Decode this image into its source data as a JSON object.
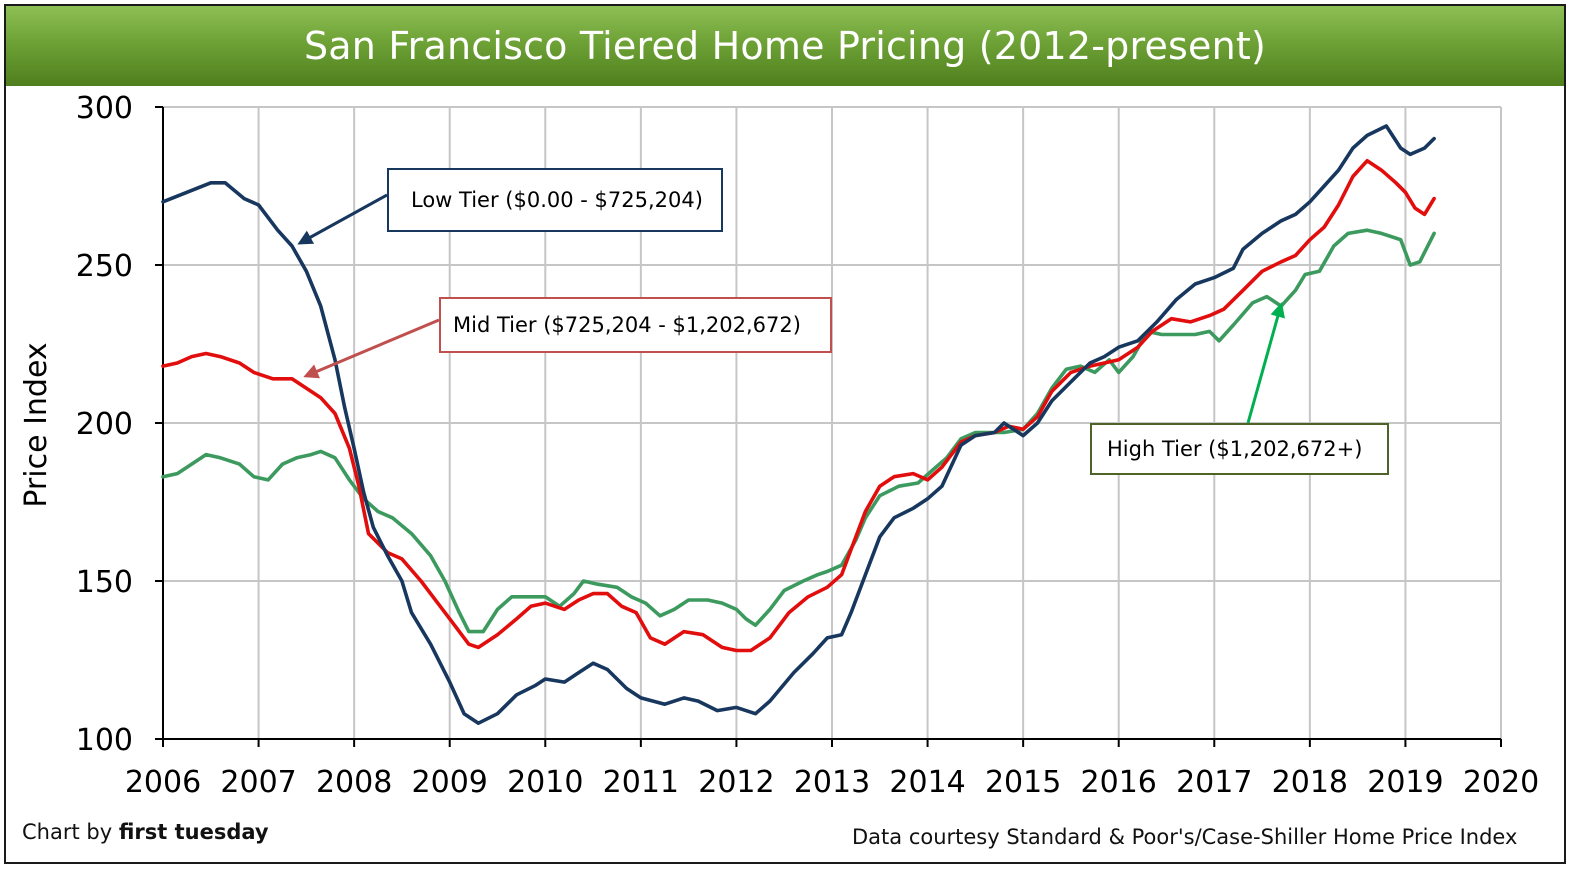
{
  "chart_data": {
    "type": "line",
    "title": "San Francisco Tiered Home Pricing (2012-present)",
    "ylabel": "Price Index",
    "xlabel": "",
    "xlim": [
      2006,
      2020
    ],
    "ylim": [
      100,
      300
    ],
    "x_ticks": [
      "2006",
      "2007",
      "2008",
      "2009",
      "2010",
      "2011",
      "2012",
      "2013",
      "2014",
      "2015",
      "2016",
      "2017",
      "2018",
      "2019",
      "2020"
    ],
    "y_ticks": [
      "100",
      "150",
      "200",
      "250",
      "300"
    ],
    "grid": true,
    "series": [
      {
        "name": "Low Tier ($0.00 - $725,204)",
        "color": "#17375e",
        "points": [
          [
            2006.0,
            270
          ],
          [
            2006.25,
            273
          ],
          [
            2006.5,
            276
          ],
          [
            2006.65,
            276
          ],
          [
            2006.85,
            271
          ],
          [
            2007.0,
            269
          ],
          [
            2007.2,
            261
          ],
          [
            2007.35,
            256
          ],
          [
            2007.5,
            248
          ],
          [
            2007.65,
            237
          ],
          [
            2007.8,
            220
          ],
          [
            2007.9,
            205
          ],
          [
            2008.0,
            192
          ],
          [
            2008.1,
            178
          ],
          [
            2008.2,
            167
          ],
          [
            2008.35,
            158
          ],
          [
            2008.5,
            150
          ],
          [
            2008.6,
            140
          ],
          [
            2008.8,
            130
          ],
          [
            2009.0,
            118
          ],
          [
            2009.15,
            108
          ],
          [
            2009.3,
            105
          ],
          [
            2009.5,
            108
          ],
          [
            2009.7,
            114
          ],
          [
            2009.9,
            117
          ],
          [
            2010.0,
            119
          ],
          [
            2010.2,
            118
          ],
          [
            2010.35,
            121
          ],
          [
            2010.5,
            124
          ],
          [
            2010.65,
            122
          ],
          [
            2010.85,
            116
          ],
          [
            2011.0,
            113
          ],
          [
            2011.25,
            111
          ],
          [
            2011.45,
            113
          ],
          [
            2011.6,
            112
          ],
          [
            2011.8,
            109
          ],
          [
            2012.0,
            110
          ],
          [
            2012.2,
            108
          ],
          [
            2012.35,
            112
          ],
          [
            2012.6,
            121
          ],
          [
            2012.8,
            127
          ],
          [
            2012.95,
            132
          ],
          [
            2013.1,
            133
          ],
          [
            2013.2,
            140
          ],
          [
            2013.35,
            152
          ],
          [
            2013.5,
            164
          ],
          [
            2013.65,
            170
          ],
          [
            2013.85,
            173
          ],
          [
            2014.0,
            176
          ],
          [
            2014.15,
            180
          ],
          [
            2014.35,
            193
          ],
          [
            2014.5,
            196
          ],
          [
            2014.7,
            197
          ],
          [
            2014.8,
            200
          ],
          [
            2014.95,
            197
          ],
          [
            2015.0,
            196
          ],
          [
            2015.15,
            200
          ],
          [
            2015.3,
            207
          ],
          [
            2015.5,
            213
          ],
          [
            2015.7,
            219
          ],
          [
            2015.85,
            221
          ],
          [
            2016.0,
            224
          ],
          [
            2016.2,
            226
          ],
          [
            2016.4,
            232
          ],
          [
            2016.6,
            239
          ],
          [
            2016.8,
            244
          ],
          [
            2017.0,
            246
          ],
          [
            2017.2,
            249
          ],
          [
            2017.3,
            255
          ],
          [
            2017.5,
            260
          ],
          [
            2017.7,
            264
          ],
          [
            2017.85,
            266
          ],
          [
            2018.0,
            270
          ],
          [
            2018.15,
            275
          ],
          [
            2018.3,
            280
          ],
          [
            2018.45,
            287
          ],
          [
            2018.6,
            291
          ],
          [
            2018.8,
            294
          ],
          [
            2018.95,
            287
          ],
          [
            2019.05,
            285
          ],
          [
            2019.2,
            287
          ],
          [
            2019.3,
            290
          ]
        ]
      },
      {
        "name": "Mid Tier ($725,204 - $1,202,672)",
        "color": "#e20d0d",
        "points": [
          [
            2006.0,
            218
          ],
          [
            2006.15,
            219
          ],
          [
            2006.3,
            221
          ],
          [
            2006.45,
            222
          ],
          [
            2006.6,
            221
          ],
          [
            2006.8,
            219
          ],
          [
            2006.95,
            216
          ],
          [
            2007.15,
            214
          ],
          [
            2007.35,
            214
          ],
          [
            2007.5,
            211
          ],
          [
            2007.65,
            208
          ],
          [
            2007.8,
            203
          ],
          [
            2007.95,
            192
          ],
          [
            2008.05,
            180
          ],
          [
            2008.15,
            165
          ],
          [
            2008.35,
            159
          ],
          [
            2008.5,
            157
          ],
          [
            2008.7,
            150
          ],
          [
            2008.9,
            142
          ],
          [
            2009.05,
            136
          ],
          [
            2009.2,
            130
          ],
          [
            2009.3,
            129
          ],
          [
            2009.5,
            133
          ],
          [
            2009.7,
            138
          ],
          [
            2009.85,
            142
          ],
          [
            2010.0,
            143
          ],
          [
            2010.2,
            141
          ],
          [
            2010.35,
            144
          ],
          [
            2010.5,
            146
          ],
          [
            2010.65,
            146
          ],
          [
            2010.8,
            142
          ],
          [
            2010.95,
            140
          ],
          [
            2011.1,
            132
          ],
          [
            2011.25,
            130
          ],
          [
            2011.45,
            134
          ],
          [
            2011.65,
            133
          ],
          [
            2011.85,
            129
          ],
          [
            2012.0,
            128
          ],
          [
            2012.15,
            128
          ],
          [
            2012.35,
            132
          ],
          [
            2012.55,
            140
          ],
          [
            2012.75,
            145
          ],
          [
            2012.95,
            148
          ],
          [
            2013.1,
            152
          ],
          [
            2013.2,
            160
          ],
          [
            2013.35,
            172
          ],
          [
            2013.5,
            180
          ],
          [
            2013.65,
            183
          ],
          [
            2013.85,
            184
          ],
          [
            2014.0,
            182
          ],
          [
            2014.15,
            186
          ],
          [
            2014.35,
            194
          ],
          [
            2014.5,
            196
          ],
          [
            2014.7,
            197
          ],
          [
            2014.85,
            199
          ],
          [
            2015.0,
            198
          ],
          [
            2015.15,
            202
          ],
          [
            2015.3,
            210
          ],
          [
            2015.5,
            216
          ],
          [
            2015.7,
            218
          ],
          [
            2015.85,
            219
          ],
          [
            2016.0,
            220
          ],
          [
            2016.2,
            224
          ],
          [
            2016.35,
            229
          ],
          [
            2016.55,
            233
          ],
          [
            2016.75,
            232
          ],
          [
            2016.95,
            234
          ],
          [
            2017.1,
            236
          ],
          [
            2017.3,
            242
          ],
          [
            2017.5,
            248
          ],
          [
            2017.7,
            251
          ],
          [
            2017.85,
            253
          ],
          [
            2018.0,
            258
          ],
          [
            2018.15,
            262
          ],
          [
            2018.3,
            269
          ],
          [
            2018.45,
            278
          ],
          [
            2018.6,
            283
          ],
          [
            2018.75,
            280
          ],
          [
            2018.9,
            276
          ],
          [
            2019.0,
            273
          ],
          [
            2019.1,
            268
          ],
          [
            2019.2,
            266
          ],
          [
            2019.3,
            271
          ]
        ]
      },
      {
        "name": "High Tier ($1,202,672+)",
        "color": "#3c9a5f",
        "points": [
          [
            2006.0,
            183
          ],
          [
            2006.15,
            184
          ],
          [
            2006.3,
            187
          ],
          [
            2006.45,
            190
          ],
          [
            2006.6,
            189
          ],
          [
            2006.8,
            187
          ],
          [
            2006.95,
            183
          ],
          [
            2007.1,
            182
          ],
          [
            2007.25,
            187
          ],
          [
            2007.4,
            189
          ],
          [
            2007.55,
            190
          ],
          [
            2007.65,
            191
          ],
          [
            2007.8,
            189
          ],
          [
            2007.95,
            182
          ],
          [
            2008.1,
            176
          ],
          [
            2008.25,
            172
          ],
          [
            2008.4,
            170
          ],
          [
            2008.6,
            165
          ],
          [
            2008.8,
            158
          ],
          [
            2008.95,
            150
          ],
          [
            2009.1,
            140
          ],
          [
            2009.2,
            134
          ],
          [
            2009.35,
            134
          ],
          [
            2009.5,
            141
          ],
          [
            2009.65,
            145
          ],
          [
            2009.85,
            145
          ],
          [
            2010.0,
            145
          ],
          [
            2010.15,
            142
          ],
          [
            2010.3,
            146
          ],
          [
            2010.4,
            150
          ],
          [
            2010.55,
            149
          ],
          [
            2010.75,
            148
          ],
          [
            2010.9,
            145
          ],
          [
            2011.05,
            143
          ],
          [
            2011.2,
            139
          ],
          [
            2011.35,
            141
          ],
          [
            2011.5,
            144
          ],
          [
            2011.7,
            144
          ],
          [
            2011.85,
            143
          ],
          [
            2012.0,
            141
          ],
          [
            2012.1,
            138
          ],
          [
            2012.2,
            136
          ],
          [
            2012.35,
            141
          ],
          [
            2012.5,
            147
          ],
          [
            2012.7,
            150
          ],
          [
            2012.85,
            152
          ],
          [
            2012.95,
            153
          ],
          [
            2013.1,
            155
          ],
          [
            2013.25,
            163
          ],
          [
            2013.35,
            170
          ],
          [
            2013.5,
            177
          ],
          [
            2013.7,
            180
          ],
          [
            2013.9,
            181
          ],
          [
            2014.05,
            185
          ],
          [
            2014.2,
            189
          ],
          [
            2014.35,
            195
          ],
          [
            2014.5,
            197
          ],
          [
            2014.65,
            197
          ],
          [
            2014.8,
            197
          ],
          [
            2015.0,
            198
          ],
          [
            2015.15,
            203
          ],
          [
            2015.3,
            211
          ],
          [
            2015.45,
            217
          ],
          [
            2015.6,
            218
          ],
          [
            2015.75,
            216
          ],
          [
            2015.9,
            220
          ],
          [
            2016.0,
            216
          ],
          [
            2016.15,
            221
          ],
          [
            2016.3,
            229
          ],
          [
            2016.45,
            228
          ],
          [
            2016.6,
            228
          ],
          [
            2016.8,
            228
          ],
          [
            2016.95,
            229
          ],
          [
            2017.05,
            226
          ],
          [
            2017.2,
            231
          ],
          [
            2017.4,
            238
          ],
          [
            2017.55,
            240
          ],
          [
            2017.7,
            237
          ],
          [
            2017.85,
            242
          ],
          [
            2017.95,
            247
          ],
          [
            2018.1,
            248
          ],
          [
            2018.25,
            256
          ],
          [
            2018.4,
            260
          ],
          [
            2018.6,
            261
          ],
          [
            2018.75,
            260
          ],
          [
            2018.95,
            258
          ],
          [
            2019.05,
            250
          ],
          [
            2019.15,
            251
          ],
          [
            2019.3,
            260
          ]
        ]
      }
    ],
    "callouts": [
      {
        "label": "Low Tier ($0.00 - $725,204)",
        "border": "#17375e",
        "arrow": "#17375e"
      },
      {
        "label": "Mid Tier ($725,204 - $1,202,672)",
        "border": "#c0504d",
        "arrow": "#c0504d"
      },
      {
        "label": "High Tier ($1,202,672+)",
        "border": "#4f6228",
        "arrow": "#00b050"
      }
    ],
    "credit_left_prefix": "Chart by ",
    "credit_left_brand": "first tuesday",
    "credit_right": "Data courtesy Standard & Poor's/Case-Shiller Home Price Index"
  }
}
